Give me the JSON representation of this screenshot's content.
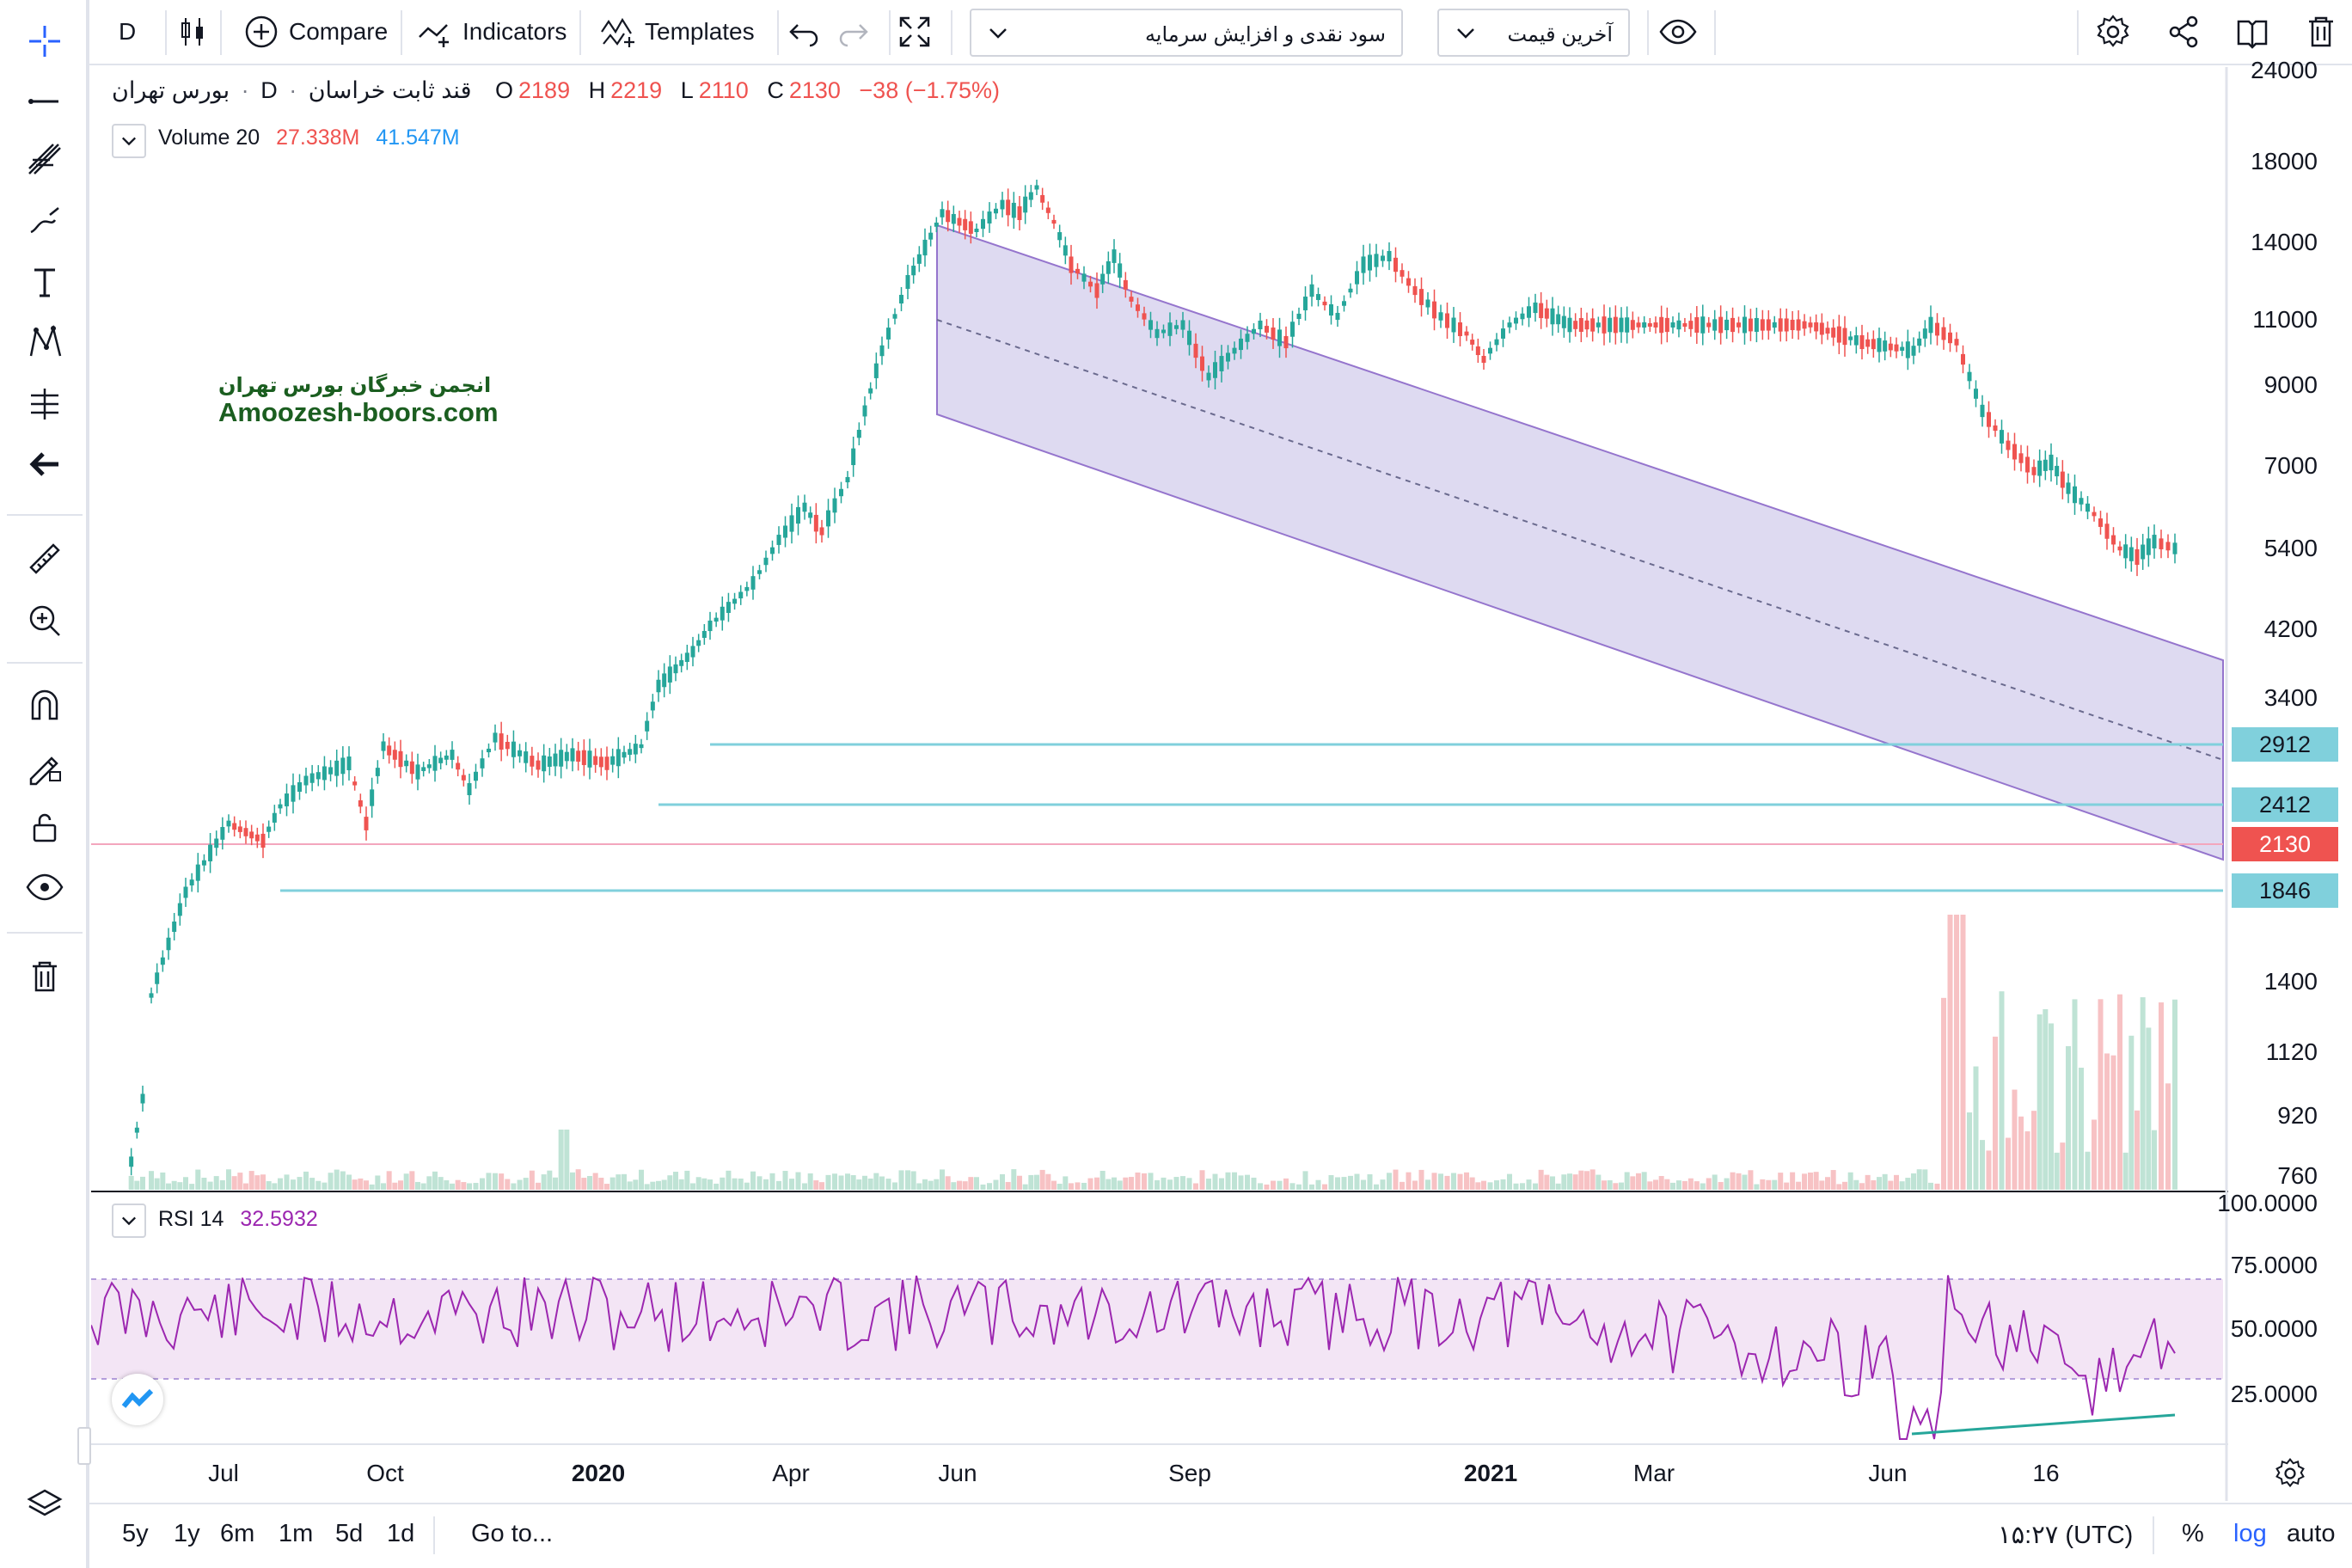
{
  "top_toolbar": {
    "interval": "D",
    "compare_label": "Compare",
    "indicators_label": "Indicators",
    "templates_label": "Templates",
    "dropdown_left": "سود نقدی و افزایش سرمایه",
    "dropdown_right": "آخرین قیمت"
  },
  "legend": {
    "symbol_name": "قند ثابت خراسان",
    "interval": "D",
    "exchange": "بورس تهران",
    "open_label": "O",
    "open": "2189",
    "high_label": "H",
    "high": "2219",
    "low_label": "L",
    "low": "2110",
    "close_label": "C",
    "close": "2130",
    "change": "−38 (−1.75%)"
  },
  "volume_legend": {
    "name": "Volume 20",
    "value1": "27.338M",
    "value2": "41.547M"
  },
  "watermark": {
    "line1": "انجمن خبرگان بورس تهران",
    "line2": "Amoozesh-boors.com"
  },
  "price_axis": {
    "ticks": [
      "24000",
      "18000",
      "14000",
      "11000",
      "9000",
      "7000",
      "5400",
      "4200",
      "3400",
      "1400",
      "1120",
      "920",
      "760"
    ],
    "labels": [
      {
        "value": "2912",
        "bg": "#80d0dc"
      },
      {
        "value": "2412",
        "bg": "#80d0dc"
      },
      {
        "value": "2130",
        "bg": "#ef5350"
      },
      {
        "value": "1846",
        "bg": "#80d0dc"
      }
    ]
  },
  "rsi": {
    "name": "RSI 14",
    "value": "32.5932",
    "axis_ticks": [
      "100.0000",
      "75.0000",
      "50.0000",
      "25.0000"
    ]
  },
  "time_axis": [
    "Jul",
    "Oct",
    "2020",
    "Apr",
    "Jun",
    "Sep",
    "2021",
    "Mar",
    "Jun",
    "16"
  ],
  "bottom_bar": {
    "ranges": [
      "5y",
      "1y",
      "6m",
      "1m",
      "5d",
      "1d"
    ],
    "goto_label": "Go to...",
    "clock": "۱۵:۲۷ (UTC)",
    "percent_label": "%",
    "log_label": "log",
    "auto_label": "auto"
  },
  "colors": {
    "up": "#26a69a",
    "down": "#ef5350",
    "channel_fill": "#d8d4ee",
    "channel_line": "#9575cd",
    "hline": "#80d0dc",
    "rsi_line": "#9c27b0",
    "rsi_band": "#f3e5f5",
    "accent": "#2962ff"
  }
}
